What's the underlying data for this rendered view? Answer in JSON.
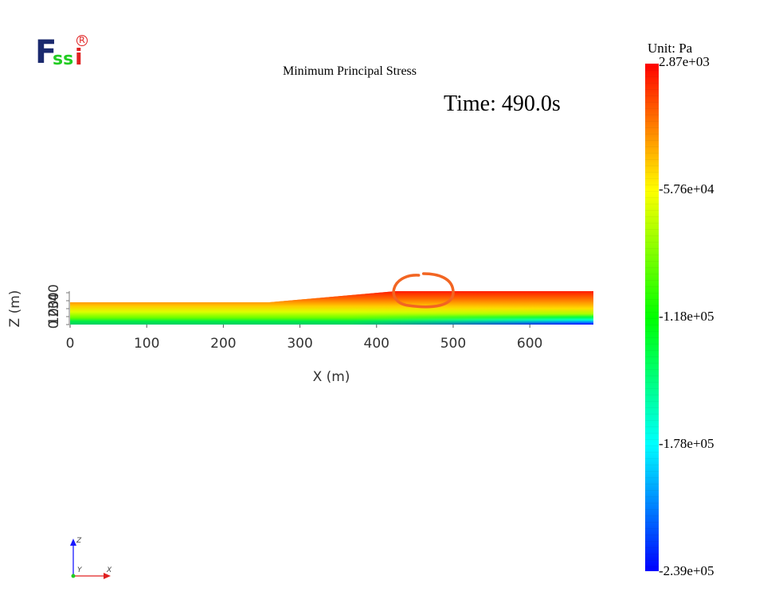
{
  "logo": {
    "f_letter": "F",
    "ss_letters": "ss",
    "i_letter": "i",
    "registered_mark": "R",
    "colors": {
      "primary": "#1b2a6e",
      "accent": "#22cc22",
      "red": "#e02020"
    }
  },
  "plot_title": "Minimum Principal Stress",
  "time_label": "Time: 490.0s",
  "colorbar": {
    "unit_label": "Unit:  Pa",
    "labels": [
      "2.87e+03",
      "-5.76e+04",
      "-1.18e+05",
      "-1.78e+05",
      "-2.39e+05"
    ],
    "colors": [
      "#ff0000",
      "#ffff00",
      "#00ff00",
      "#00ffff",
      "#0000ff"
    ]
  },
  "chart_data": {
    "type": "heatmap",
    "title": "Minimum Principal Stress",
    "xlabel": "X (m)",
    "ylabel": "Z (m)",
    "x_ticks": [
      "0",
      "100",
      "200",
      "300",
      "400",
      "500",
      "600"
    ],
    "xlim": [
      0,
      683
    ],
    "y_ticks": [
      "0",
      "10",
      "20",
      "30",
      "40"
    ],
    "ylim": [
      0,
      42
    ],
    "domain_profile": {
      "x": [
        0,
        260,
        425,
        683
      ],
      "top_z": [
        28,
        28,
        42,
        42
      ]
    },
    "value_range": [
      -239000,
      2870
    ],
    "unit": "Pa",
    "annotation": {
      "type": "hand-drawn ellipse",
      "color": "#f26522",
      "center_x": 455,
      "center_z": 42
    }
  },
  "triad": {
    "z_label": "Z",
    "y_label": "Y",
    "x_label": "X"
  }
}
